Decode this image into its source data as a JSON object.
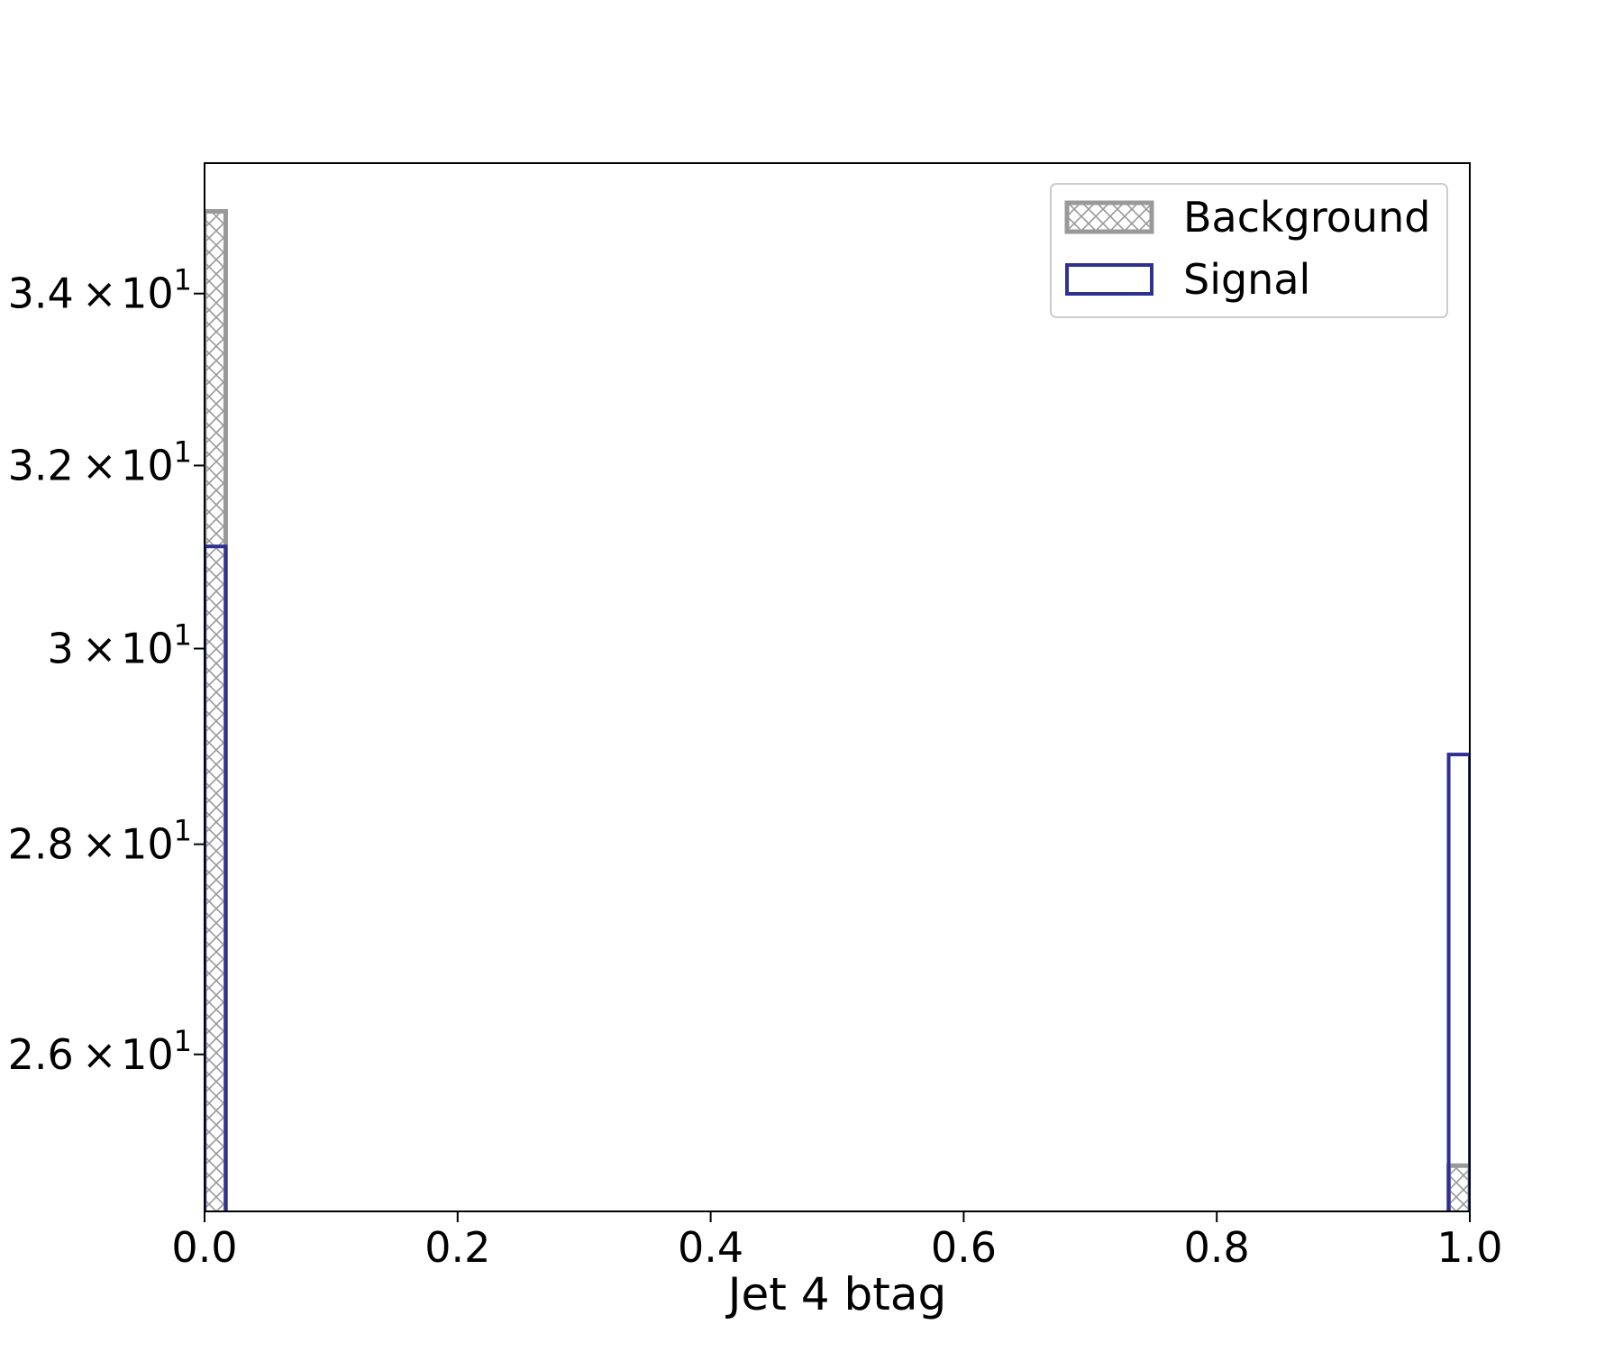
{
  "chart_data": {
    "type": "bar",
    "xlabel": "Jet 4 btag",
    "ylabel": "",
    "xlim": [
      0.0,
      1.0
    ],
    "ylim": [
      24.6,
      35.6
    ],
    "y_scale": "log",
    "grid": false,
    "legend_position": "top-right",
    "x_ticks": [
      "0.0",
      "0.2",
      "0.4",
      "0.6",
      "0.8",
      "1.0"
    ],
    "y_ticks": [
      {
        "value": 26,
        "mantissa": "2.6",
        "base": "10",
        "exponent": "1"
      },
      {
        "value": 28,
        "mantissa": "2.8",
        "base": "10",
        "exponent": "1"
      },
      {
        "value": 30,
        "mantissa": "3",
        "base": "10",
        "exponent": "1"
      },
      {
        "value": 32,
        "mantissa": "3.2",
        "base": "10",
        "exponent": "1"
      },
      {
        "value": 34,
        "mantissa": "3.4",
        "base": "10",
        "exponent": "1"
      }
    ],
    "bin_width": 0.0167,
    "series": [
      {
        "name": "Background",
        "style": "hatched",
        "color": "#999999",
        "bars": [
          {
            "x": 0.0,
            "value": 35.0
          },
          {
            "x": 0.9833,
            "value": 25.0
          }
        ]
      },
      {
        "name": "Signal",
        "style": "outline",
        "color": "#2e3192",
        "bars": [
          {
            "x": 0.0,
            "value": 31.1
          },
          {
            "x": 0.9833,
            "value": 28.9
          }
        ]
      }
    ]
  }
}
